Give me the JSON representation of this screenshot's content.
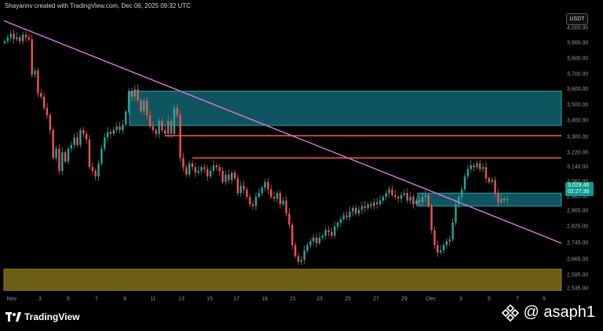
{
  "header": {
    "credit": "Shayannv created with TradingView.com, Dec 06, 2025 09:32 UTC"
  },
  "currency": "USDT",
  "price_axis": {
    "ticks": [
      "4,000.00",
      "3,900.00",
      "3,800.00",
      "3,700.00",
      "3,600.00",
      "3,500.00",
      "3,400.00",
      "3,300.00",
      "3,220.00",
      "3,140.00",
      "3,060.00",
      "2,985.00",
      "2,905.00",
      "2,825.00",
      "2,745.00",
      "2,665.00",
      "2,595.00",
      "2,535.00"
    ],
    "current_price": "3,029.46",
    "countdown": "02:27:38"
  },
  "time_axis": {
    "ticks": [
      "Nov",
      "3",
      "5",
      "7",
      "9",
      "11",
      "13",
      "15",
      "17",
      "19",
      "21",
      "23",
      "25",
      "27",
      "29",
      "Dec",
      "3",
      "5",
      "7",
      "9"
    ]
  },
  "colors": {
    "up": "#26a69a",
    "down": "#ef5350",
    "trendline": "#d670d6",
    "supply_zone": "#0f5560",
    "demand_zone": "#6b5e14",
    "resistance": "#ff5a47",
    "background": "#000000"
  },
  "chart_data": {
    "type": "candlestick",
    "symbol_quote": "USDT",
    "ylim": [
      2515,
      4030
    ],
    "x_range_days": [
      "Nov 1",
      "Dec 9"
    ],
    "trendline": {
      "from": [
        "Nov 1",
        3990
      ],
      "to": [
        "Dec 9",
        2790
      ]
    },
    "zones": [
      {
        "kind": "supply",
        "from_price": 3425,
        "to_price": 3610
      },
      {
        "kind": "small-support",
        "from_price": 2990,
        "to_price": 3060
      },
      {
        "kind": "demand",
        "from_price": 2535,
        "to_price": 2650
      }
    ],
    "resistance_lines": [
      3370,
      3250
    ],
    "closes": [
      3880,
      3900,
      3920,
      3890,
      3900,
      3880,
      3915,
      3900,
      3890,
      3700,
      3720,
      3600,
      3580,
      3520,
      3480,
      3400,
      3250,
      3300,
      3180,
      3280,
      3230,
      3300,
      3320,
      3360,
      3320,
      3400,
      3380,
      3350,
      3200,
      3180,
      3150,
      3220,
      3300,
      3360,
      3390,
      3380,
      3400,
      3420,
      3400,
      3430,
      3500,
      3610,
      3580,
      3620,
      3560,
      3500,
      3560,
      3480,
      3420,
      3400,
      3380,
      3450,
      3400,
      3380,
      3450,
      3380,
      3520,
      3480,
      3250,
      3200,
      3160,
      3220,
      3200,
      3170,
      3180,
      3200,
      3190,
      3150,
      3180,
      3210,
      3200,
      3180,
      3120,
      3160,
      3130,
      3170,
      3140,
      3060,
      3100,
      3080,
      3040,
      3000,
      2990,
      3040,
      3060,
      3090,
      3120,
      3080,
      3040,
      3030,
      3060,
      3000,
      3020,
      2950,
      2890,
      2780,
      2720,
      2690,
      2700,
      2750,
      2780,
      2800,
      2820,
      2790,
      2820,
      2830,
      2860,
      2850,
      2830,
      2880,
      2900,
      2920,
      2940,
      2930,
      2960,
      2980,
      2950,
      2970,
      2990,
      2980,
      3000,
      2990,
      3010,
      3000,
      3020,
      3040,
      3060,
      3080,
      3050,
      3040,
      3030,
      3050,
      3060,
      3020,
      3040,
      3000,
      3020,
      3010,
      3040,
      3050,
      2990,
      2860,
      2780,
      2740,
      2750,
      2780,
      2800,
      2810,
      2900,
      3000,
      3040,
      3080,
      3150,
      3190,
      3210,
      3200,
      3220,
      3190,
      3200,
      3140,
      3120,
      3130,
      3060,
      3010,
      3030,
      3020,
      3029
    ]
  }
}
